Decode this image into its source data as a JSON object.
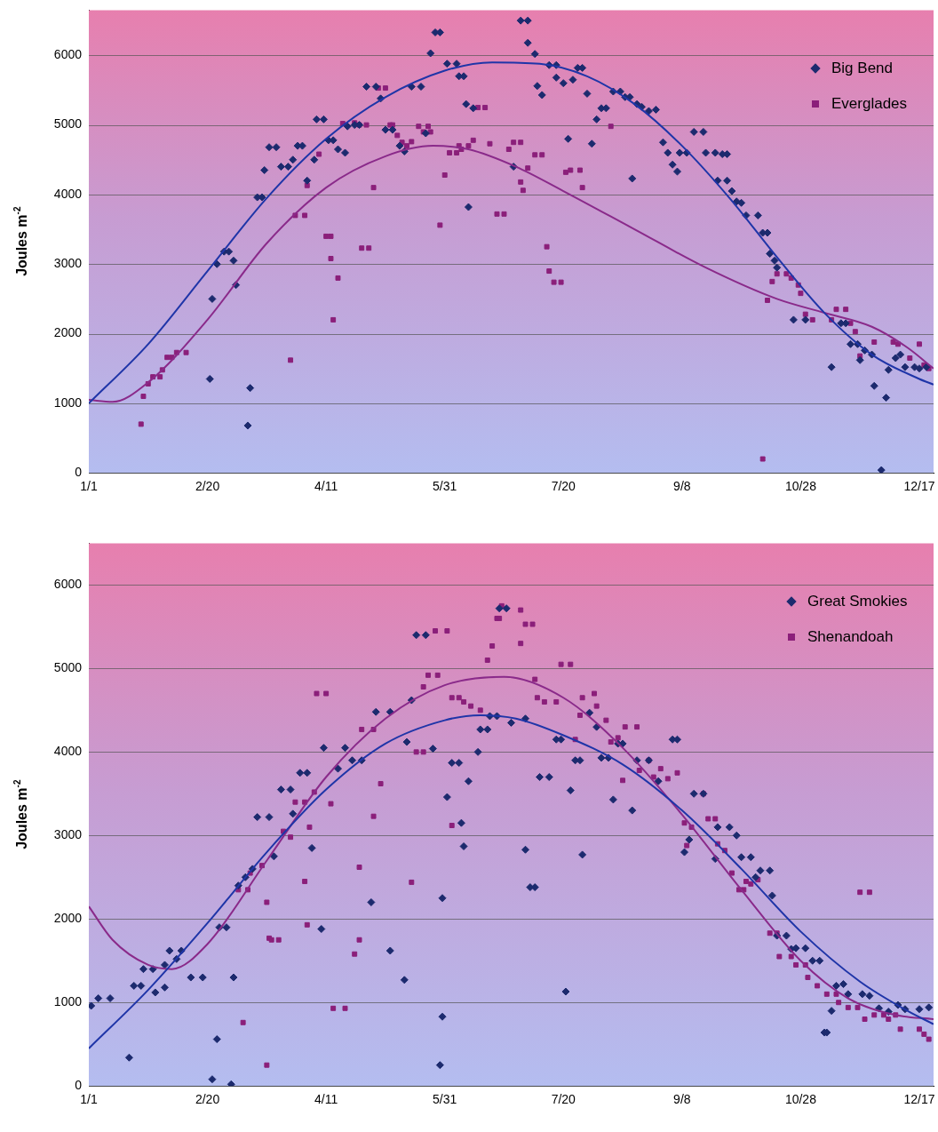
{
  "chart_data": [
    {
      "type": "scatter",
      "ylabel": "Joules m$^{-2}$",
      "xlim": [
        "--01-01",
        "--12-23"
      ],
      "ylim": [
        0,
        6650
      ],
      "xticks": [
        {
          "value": "--01-01",
          "label": "1/1"
        },
        {
          "value": "--02-20",
          "label": "2/20"
        },
        {
          "value": "--04-11",
          "label": "4/11"
        },
        {
          "value": "--05-31",
          "label": "5/31"
        },
        {
          "value": "--07-20",
          "label": "7/20"
        },
        {
          "value": "--09-08",
          "label": "9/8"
        },
        {
          "value": "--10-28",
          "label": "10/28"
        },
        {
          "value": "--12-17",
          "label": "12/17"
        }
      ],
      "yticks": [
        0,
        1000,
        2000,
        3000,
        4000,
        5000,
        6000
      ],
      "grid": "y",
      "legend": "top right",
      "series": [
        {
          "name": "Big Bend",
          "color": "#1c2a6e",
          "marker": "diamond",
          "x": [
            "--02-21",
            "--02-22",
            "--02-24",
            "--02-27",
            "--03-01",
            "--03-03",
            "--03-04",
            "--03-09",
            "--03-10",
            "--03-13",
            "--03-15",
            "--03-16",
            "--03-18",
            "--03-21",
            "--03-23",
            "--03-26",
            "--03-28",
            "--03-30",
            "--04-01",
            "--04-03",
            "--04-06",
            "--04-07",
            "--04-10",
            "--04-12",
            "--04-14",
            "--04-16",
            "--04-19",
            "--04-20",
            "--04-23",
            "--04-25",
            "--04-28",
            "--05-02",
            "--05-04",
            "--05-06",
            "--05-09",
            "--05-12",
            "--05-14",
            "--05-17",
            "--05-21",
            "--05-23",
            "--05-25",
            "--05-27",
            "--05-29",
            "--06-01",
            "--06-05",
            "--06-06",
            "--06-08",
            "--06-09",
            "--06-10",
            "--06-12",
            "--06-29",
            "--07-02",
            "--07-05",
            "--07-05",
            "--07-08",
            "--07-09",
            "--07-11",
            "--07-14",
            "--07-17",
            "--07-17",
            "--07-20",
            "--07-22",
            "--07-24",
            "--07-26",
            "--07-28",
            "--07-30",
            "--08-01",
            "--08-03",
            "--08-05",
            "--08-07",
            "--08-10",
            "--08-13",
            "--08-15",
            "--08-17",
            "--08-18",
            "--08-20",
            "--08-22",
            "--08-25",
            "--08-28",
            "--08-31",
            "--09-02",
            "--09-04",
            "--09-06",
            "--09-07",
            "--09-10",
            "--09-13",
            "--09-17",
            "--09-18",
            "--09-22",
            "--09-23",
            "--09-25",
            "--09-27",
            "--09-27",
            "--09-29",
            "--10-01",
            "--10-03",
            "--10-05",
            "--10-10",
            "--10-12",
            "--10-14",
            "--10-15",
            "--10-17",
            "--10-18",
            "--10-25",
            "--10-30",
            "--11-10",
            "--11-14",
            "--11-16",
            "--11-18",
            "--11-21",
            "--11-22",
            "--11-24",
            "--11-27",
            "--11-28",
            "--12-01",
            "--12-03",
            "--12-04",
            "--12-07",
            "--12-09",
            "--12-11",
            "--12-15",
            "--12-17",
            "--12-20"
          ],
          "values": [
            1350,
            2500,
            3000,
            3180,
            3180,
            3050,
            2700,
            680,
            1220,
            3960,
            3960,
            4350,
            4680,
            4680,
            4400,
            4400,
            4500,
            4700,
            4700,
            4200,
            4500,
            5080,
            5080,
            4780,
            4780,
            4650,
            4600,
            4980,
            5000,
            5000,
            5550,
            5550,
            5380,
            4930,
            4930,
            4700,
            4620,
            5550,
            5550,
            4880,
            6030,
            6330,
            6330,
            5880,
            5880,
            5700,
            5700,
            5300,
            3820,
            5240,
            4400,
            6500,
            6500,
            6180,
            6020,
            5560,
            5430,
            5860,
            5860,
            5680,
            5600,
            4800,
            5650,
            5820,
            5820,
            5450,
            4730,
            5080,
            5240,
            5240,
            5480,
            5480,
            5400,
            5400,
            4230,
            5300,
            5260,
            5200,
            5220,
            4750,
            4600,
            4430,
            4330,
            4600,
            4600,
            4900,
            4900,
            4600,
            4600,
            4200,
            4580,
            4580,
            4200,
            4050,
            3900,
            3880,
            3700,
            3700,
            3450,
            3450,
            3150,
            3050,
            2950,
            2200,
            2200,
            1520,
            2150,
            2150,
            1850,
            1850,
            1620,
            1760,
            1700,
            1250,
            40,
            1080,
            1480,
            1650,
            1700,
            1520,
            1520,
            1500,
            1520
          ]
        },
        {
          "name": "Everglades",
          "color": "#8b1f7a",
          "marker": "square",
          "x": [
            "--01-23",
            "--01-24",
            "--01-26",
            "--01-28",
            "--01-31",
            "--02-01",
            "--02-03",
            "--02-05",
            "--02-07",
            "--02-11",
            "--03-27",
            "--03-29",
            "--04-02",
            "--04-03",
            "--04-08",
            "--04-11",
            "--04-13",
            "--04-13",
            "--04-14",
            "--04-16",
            "--04-18",
            "--04-23",
            "--04-25",
            "--04-28",
            "--04-26",
            "--04-29",
            "--05-01",
            "--05-03",
            "--05-06",
            "--05-08",
            "--05-09",
            "--05-11",
            "--05-13",
            "--05-15",
            "--05-17",
            "--05-20",
            "--05-24",
            "--05-22",
            "--05-25",
            "--05-29",
            "--05-31",
            "--06-02",
            "--06-05",
            "--06-06",
            "--06-07",
            "--06-10",
            "--06-12",
            "--06-14",
            "--06-17",
            "--06-19",
            "--06-22",
            "--06-25",
            "--06-27",
            "--06-29",
            "--07-02",
            "--07-02",
            "--07-03",
            "--07-05",
            "--07-08",
            "--07-11",
            "--07-13",
            "--07-14",
            "--07-16",
            "--07-19",
            "--07-21",
            "--07-23",
            "--07-27",
            "--07-28",
            "--08-09",
            "--10-12",
            "--10-14",
            "--10-16",
            "--10-18",
            "--10-22",
            "--10-24",
            "--10-27",
            "--10-28",
            "--10-30",
            "--11-02",
            "--11-10",
            "--11-12",
            "--11-16",
            "--11-18",
            "--11-20",
            "--11-22",
            "--11-28",
            "--12-06",
            "--12-08",
            "--12-13",
            "--12-17",
            "--12-19",
            "--12-21"
          ],
          "values": [
            700,
            1100,
            1280,
            1380,
            1380,
            1480,
            1660,
            1660,
            1730,
            1730,
            1620,
            3700,
            3700,
            4130,
            4580,
            3400,
            3400,
            3080,
            2200,
            2800,
            5020,
            5030,
            5000,
            5000,
            3230,
            3230,
            4100,
            5530,
            5530,
            5000,
            5000,
            4850,
            4750,
            4700,
            4760,
            4980,
            4980,
            4900,
            4900,
            3560,
            4280,
            4600,
            4600,
            4700,
            4650,
            4700,
            4780,
            5250,
            5250,
            4730,
            3720,
            3720,
            4650,
            4750,
            4750,
            4180,
            4060,
            4380,
            4570,
            4570,
            3250,
            2900,
            2740,
            2740,
            4320,
            4350,
            4350,
            4100,
            4980,
            200,
            2480,
            2750,
            2860,
            2860,
            2800,
            2700,
            2580,
            2280,
            2200,
            2200,
            2350,
            2350,
            2150,
            2030,
            1680,
            1880,
            1880,
            1850,
            1650,
            1850,
            1550,
            1500
          ]
        },
        {
          "type": "line",
          "color": "#1f35a8",
          "marker": "none",
          "x": [
            "--01-01",
            "--01-26",
            "--02-20",
            "--03-17",
            "--04-11",
            "--05-06",
            "--05-31",
            "--06-20",
            "--07-10",
            "--07-30",
            "--08-19",
            "--09-08",
            "--09-28",
            "--10-18",
            "--11-07",
            "--11-27",
            "--12-17",
            "--12-23"
          ],
          "values": [
            1000,
            1850,
            2900,
            3950,
            4800,
            5400,
            5780,
            5900,
            5880,
            5700,
            5300,
            4700,
            3950,
            3100,
            2300,
            1700,
            1350,
            1270
          ]
        },
        {
          "type": "line",
          "color": "#8a2a8a",
          "marker": "none",
          "x": [
            "--01-01",
            "--01-11",
            "--01-26",
            "--02-20",
            "--03-17",
            "--04-11",
            "--05-06",
            "--05-26",
            "--06-10",
            "--06-30",
            "--07-20",
            "--08-19",
            "--09-18",
            "--10-18",
            "--11-07",
            "--11-27",
            "--12-12",
            "--12-23"
          ],
          "values": [
            1050,
            1020,
            1300,
            2200,
            3300,
            4100,
            4550,
            4700,
            4650,
            4400,
            4050,
            3500,
            2950,
            2500,
            2300,
            2100,
            1800,
            1500
          ]
        }
      ]
    },
    {
      "type": "scatter",
      "ylabel": "Joules m$^{-2}$",
      "xlim": [
        "--01-01",
        "--12-23"
      ],
      "ylim": [
        0,
        6500
      ],
      "xticks": [
        {
          "value": "--01-01",
          "label": "1/1"
        },
        {
          "value": "--02-20",
          "label": "2/20"
        },
        {
          "value": "--04-11",
          "label": "4/11"
        },
        {
          "value": "--05-31",
          "label": "5/31"
        },
        {
          "value": "--07-20",
          "label": "7/20"
        },
        {
          "value": "--09-08",
          "label": "9/8"
        },
        {
          "value": "--10-28",
          "label": "10/28"
        },
        {
          "value": "--12-17",
          "label": "12/17"
        }
      ],
      "yticks": [
        0,
        1000,
        2000,
        3000,
        4000,
        5000,
        6000
      ],
      "grid": "y",
      "legend": "top right",
      "series": [
        {
          "name": "Great Smokies",
          "color": "#1c2a6e",
          "marker": "diamond",
          "x": [
            "--01-02",
            "--01-05",
            "--01-10",
            "--01-18",
            "--01-20",
            "--01-23",
            "--01-24",
            "--01-28",
            "--01-29",
            "--02-02",
            "--02-02",
            "--02-04",
            "--02-09",
            "--02-07",
            "--02-13",
            "--02-18",
            "--02-22",
            "--02-24",
            "--02-25",
            "--02-28",
            "--03-02",
            "--03-03",
            "--03-05",
            "--03-08",
            "--03-11",
            "--03-13",
            "--03-18",
            "--03-20",
            "--03-23",
            "--03-27",
            "--03-28",
            "--03-31",
            "--04-03",
            "--04-05",
            "--04-09",
            "--04-10",
            "--04-19",
            "--04-16",
            "--04-22",
            "--04-26",
            "--04-30",
            "--05-02",
            "--05-08",
            "--05-08",
            "--05-14",
            "--05-15",
            "--05-17",
            "--05-19",
            "--05-23",
            "--05-26",
            "--05-29",
            "--05-30",
            "--05-30",
            "--06-01",
            "--06-03",
            "--06-06",
            "--06-08",
            "--06-07",
            "--06-10",
            "--06-14",
            "--06-15",
            "--06-18",
            "--06-19",
            "--06-22",
            "--06-23",
            "--06-26",
            "--06-28",
            "--07-04",
            "--07-04",
            "--07-06",
            "--07-08",
            "--07-10",
            "--07-14",
            "--07-17",
            "--07-19",
            "--07-21",
            "--07-23",
            "--07-25",
            "--07-27",
            "--07-28",
            "--07-31",
            "--08-03",
            "--08-05",
            "--08-08",
            "--08-10",
            "--08-12",
            "--08-14",
            "--08-18",
            "--08-20",
            "--08-25",
            "--08-29",
            "--09-04",
            "--09-06",
            "--09-09",
            "--09-11",
            "--09-13",
            "--09-17",
            "--09-22",
            "--09-23",
            "--09-28",
            "--10-01",
            "--10-03",
            "--10-07",
            "--10-09",
            "--10-11",
            "--10-15",
            "--10-16",
            "--10-18",
            "--10-22",
            "--10-24",
            "--10-26",
            "--10-30",
            "--11-02",
            "--11-05",
            "--11-07",
            "--11-08",
            "--11-10",
            "--11-12",
            "--11-15",
            "--11-17",
            "--11-23",
            "--11-26",
            "--11-30",
            "--12-04",
            "--12-08",
            "--12-11",
            "--12-17",
            "--12-21"
          ],
          "values": [
            960,
            1050,
            1050,
            340,
            1200,
            1200,
            1400,
            1400,
            1120,
            1180,
            1450,
            1620,
            1620,
            1520,
            1300,
            1300,
            80,
            560,
            1900,
            1900,
            20,
            1300,
            2400,
            2500,
            2600,
            3220,
            3220,
            2750,
            3550,
            3550,
            3260,
            3750,
            3750,
            2850,
            1880,
            4050,
            4050,
            3800,
            3900,
            3900,
            2200,
            4480,
            4480,
            1620,
            1270,
            4120,
            4620,
            5400,
            5400,
            4040,
            250,
            830,
            2250,
            3460,
            3870,
            3870,
            2870,
            3150,
            3650,
            4000,
            4270,
            4270,
            4430,
            4430,
            5720,
            5720,
            4350,
            4400,
            2830,
            2380,
            2380,
            3700,
            3700,
            4150,
            4150,
            1130,
            3540,
            3900,
            3900,
            2770,
            4470,
            4300,
            3930,
            3930,
            3430,
            4100,
            4100,
            3300,
            3900,
            3900,
            3650,
            4150,
            4150,
            2800,
            2950,
            3500,
            3500,
            2720,
            3100,
            3100,
            3000,
            2740,
            2740,
            2500,
            2580,
            2580,
            2280,
            1800,
            1800,
            1640,
            1650,
            1650,
            1500,
            1500,
            640,
            640,
            900,
            1200,
            1220,
            1100,
            1100,
            1080,
            930,
            890,
            970,
            920,
            920,
            940
          ]
        },
        {
          "name": "Shenandoah",
          "color": "#8b1f7a",
          "marker": "square",
          "x": [
            "--03-05",
            "--03-09",
            "--03-07",
            "--03-10",
            "--03-15",
            "--03-17",
            "--03-17",
            "--03-18",
            "--03-19",
            "--03-22",
            "--03-24",
            "--03-27",
            "--03-29",
            "--04-02",
            "--04-02",
            "--04-03",
            "--04-04",
            "--04-06",
            "--04-07",
            "--04-11",
            "--04-13",
            "--04-14",
            "--04-19",
            "--04-23",
            "--04-25",
            "--04-25",
            "--04-26",
            "--05-01",
            "--05-01",
            "--05-04",
            "--05-17",
            "--05-19",
            "--05-22",
            "--05-22",
            "--05-24",
            "--05-28",
            "--05-27",
            "--06-01",
            "--06-03",
            "--06-03",
            "--06-06",
            "--06-08",
            "--06-11",
            "--06-15",
            "--06-18",
            "--06-20",
            "--06-22",
            "--06-23",
            "--06-24",
            "--07-02",
            "--07-02",
            "--07-04",
            "--07-07",
            "--07-08",
            "--07-09",
            "--07-12",
            "--07-17",
            "--07-19",
            "--07-23",
            "--07-25",
            "--07-27",
            "--07-28",
            "--08-02",
            "--08-03",
            "--08-07",
            "--08-09",
            "--08-12",
            "--08-15",
            "--08-20",
            "--08-14",
            "--08-21",
            "--08-25",
            "--08-27",
            "--08-30",
            "--09-02",
            "--09-06",
            "--09-09",
            "--09-10",
            "--09-12",
            "--09-17",
            "--09-19",
            "--09-22",
            "--09-23",
            "--09-26",
            "--09-29",
            "--10-02",
            "--10-04",
            "--10-05",
            "--10-07",
            "--10-10",
            "--10-15",
            "--10-18",
            "--10-19",
            "--10-24",
            "--10-26",
            "--10-30",
            "--10-31",
            "--11-04",
            "--11-08",
            "--11-12",
            "--11-13",
            "--11-17",
            "--11-21",
            "--11-22",
            "--11-26",
            "--11-24",
            "--11-28",
            "--12-02",
            "--12-04",
            "--12-07",
            "--12-09",
            "--12-17",
            "--12-19",
            "--12-21"
          ],
          "values": [
            2350,
            2350,
            760,
            2550,
            2640,
            250,
            2200,
            1770,
            1750,
            1750,
            3050,
            2980,
            3400,
            3400,
            2450,
            1930,
            3100,
            3520,
            4700,
            4700,
            3380,
            930,
            930,
            1580,
            1750,
            2620,
            4270,
            4270,
            3230,
            3620,
            2440,
            4000,
            4000,
            4780,
            4920,
            4920,
            5450,
            5450,
            3120,
            4650,
            4650,
            4600,
            4550,
            4500,
            5100,
            5270,
            5600,
            5600,
            5750,
            5700,
            5300,
            5530,
            5530,
            4870,
            4650,
            4600,
            4600,
            5050,
            5050,
            4150,
            4440,
            4650,
            4700,
            4550,
            4380,
            4120,
            4170,
            4300,
            4300,
            3660,
            3780,
            3900,
            3700,
            3800,
            3680,
            3750,
            3150,
            2880,
            3100,
            3500,
            3200,
            3200,
            2900,
            2820,
            2550,
            2350,
            2350,
            2450,
            2420,
            2470,
            1830,
            1830,
            1550,
            1550,
            1450,
            1450,
            1300,
            1200,
            1100,
            1100,
            1000,
            940,
            940,
            2320,
            2320,
            800,
            850,
            850,
            800,
            850,
            680,
            680,
            620,
            560
          ]
        },
        {
          "type": "line",
          "color": "#1f35a8",
          "marker": "none",
          "x": [
            "--01-01",
            "--01-26",
            "--02-20",
            "--03-17",
            "--04-11",
            "--05-06",
            "--05-31",
            "--06-15",
            "--06-30",
            "--07-20",
            "--08-14",
            "--09-08",
            "--10-03",
            "--10-28",
            "--11-22",
            "--12-12",
            "--12-23"
          ],
          "values": [
            450,
            1150,
            1950,
            2800,
            3550,
            4100,
            4380,
            4440,
            4400,
            4200,
            3850,
            3300,
            2600,
            1850,
            1250,
            900,
            740
          ]
        },
        {
          "type": "line",
          "color": "#8a2a8a",
          "marker": "none",
          "x": [
            "--01-01",
            "--01-11",
            "--01-26",
            "--02-05",
            "--02-20",
            "--03-17",
            "--04-11",
            "--05-06",
            "--05-31",
            "--06-25",
            "--07-20",
            "--08-14",
            "--09-08",
            "--10-03",
            "--10-28",
            "--11-17",
            "--12-07",
            "--12-23"
          ],
          "values": [
            2150,
            1750,
            1450,
            1400,
            1700,
            2700,
            3700,
            4400,
            4800,
            4900,
            4650,
            4050,
            3250,
            2350,
            1500,
            1050,
            850,
            800
          ]
        }
      ]
    }
  ]
}
